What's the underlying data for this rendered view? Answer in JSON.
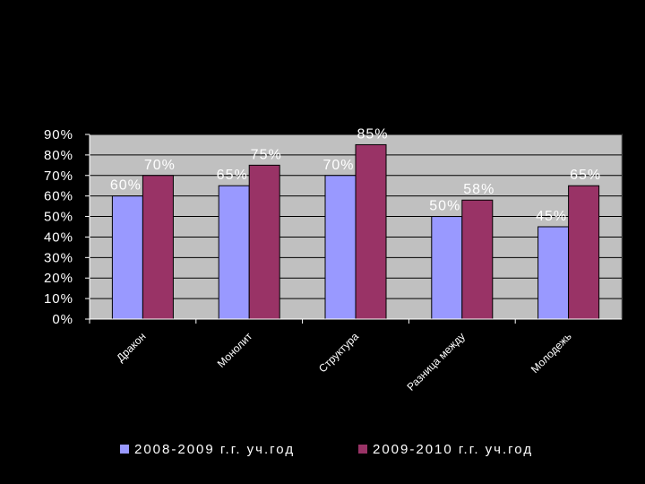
{
  "slide": {
    "background_color": "#000000",
    "plot_background_color": "#c0c0c0"
  },
  "chart_data": {
    "type": "bar",
    "categories": [
      "Дракон",
      "Монолит",
      "Структура",
      "Разница между",
      "Молодежь"
    ],
    "series": [
      {
        "name": "2008-2009 г.г. уч.год",
        "color": "#9999ff",
        "values": [
          60,
          65,
          70,
          50,
          45
        ]
      },
      {
        "name": "2009-2010 г.г. уч.год",
        "color": "#993366",
        "values": [
          70,
          75,
          85,
          58,
          65
        ]
      }
    ],
    "ylim": [
      0,
      90
    ],
    "yticks": [
      "0%",
      "10%",
      "20%",
      "30%",
      "40%",
      "50%",
      "60%",
      "70%",
      "80%",
      "90%"
    ],
    "data_labels": [
      [
        "60%",
        "65%",
        "70%",
        "50%",
        "45%"
      ],
      [
        "70%",
        "75%",
        "85%",
        "58%",
        "65%"
      ]
    ],
    "grid": true,
    "legend_position": "bottom"
  }
}
